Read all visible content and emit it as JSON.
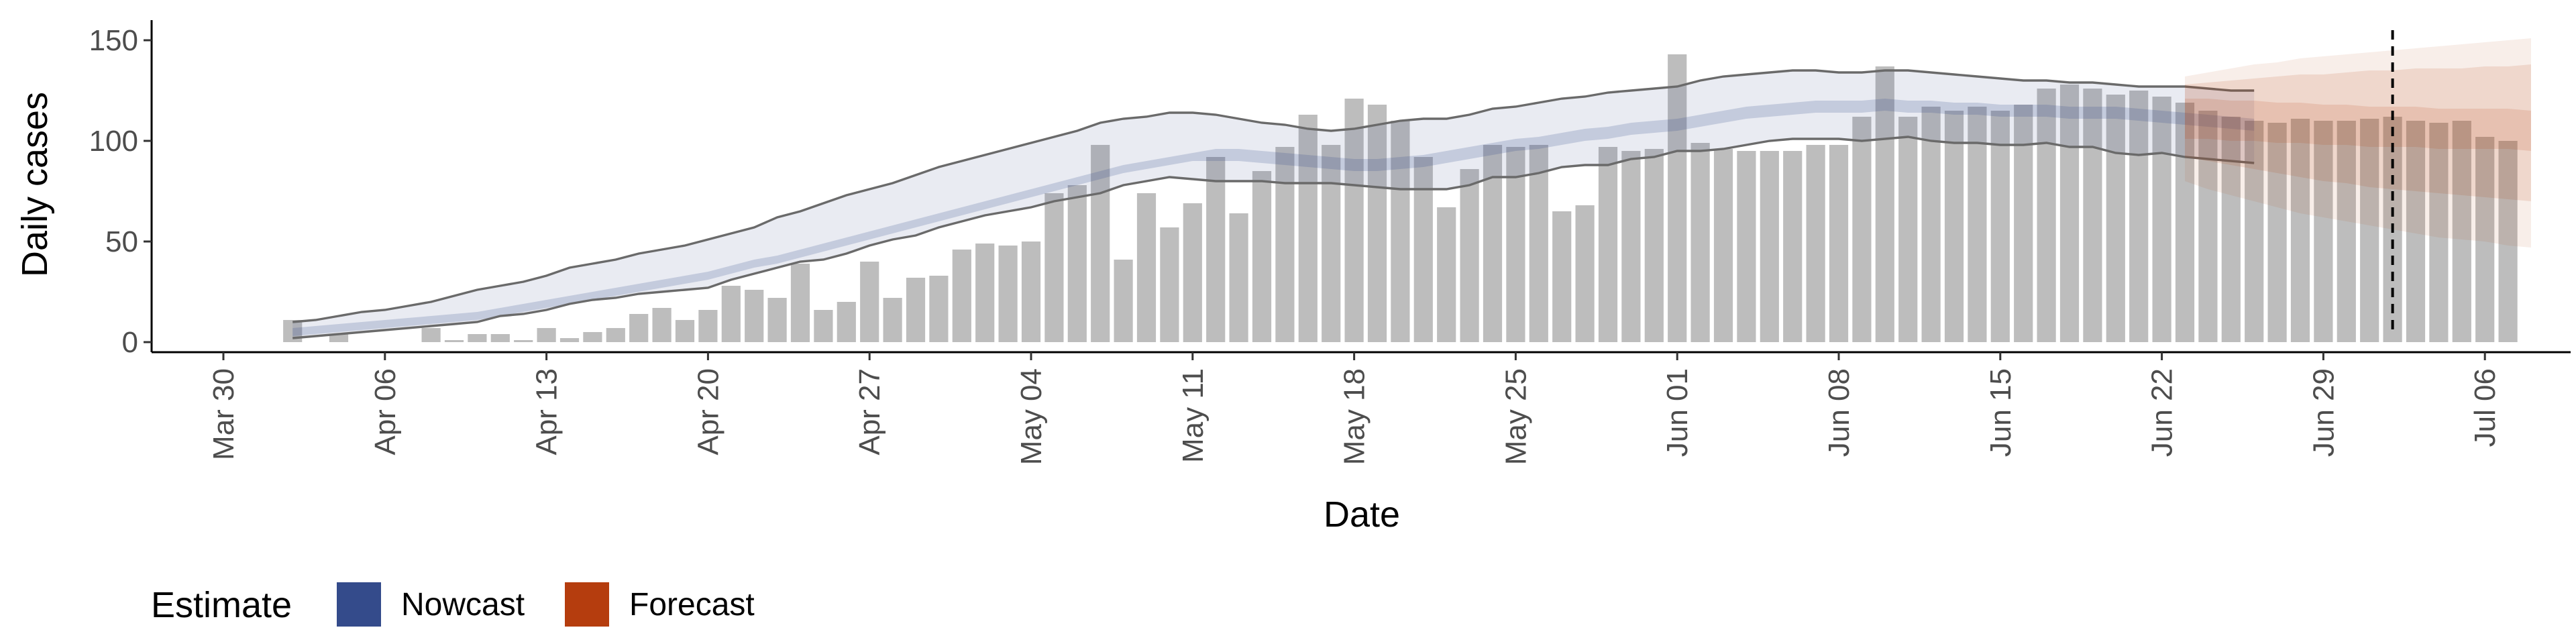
{
  "chart_data": {
    "type": "bar",
    "xlabel": "Date",
    "ylabel": "Daily cases",
    "ylim": [
      -5,
      160
    ],
    "yticks": [
      0,
      50,
      100,
      150
    ],
    "xlim": [
      "2020-03-30",
      "2020-07-09"
    ],
    "xticks": [
      "2020-03-30",
      "2020-04-06",
      "2020-04-13",
      "2020-04-20",
      "2020-04-27",
      "2020-05-04",
      "2020-05-11",
      "2020-05-18",
      "2020-05-25",
      "2020-06-01",
      "2020-06-08",
      "2020-06-15",
      "2020-06-22",
      "2020-06-29",
      "2020-07-06"
    ],
    "xtick_labels": [
      "Mar 30",
      "Apr 06",
      "Apr 13",
      "Apr 20",
      "Apr 27",
      "May 04",
      "May 11",
      "May 18",
      "May 25",
      "Jun 01",
      "Jun 08",
      "Jun 15",
      "Jun 22",
      "Jun 29",
      "Jul 06"
    ],
    "grid": false,
    "legend": {
      "title": "Estimate",
      "position": "bottom-left",
      "entries": [
        {
          "label": "Nowcast",
          "color": "#344b8b"
        },
        {
          "label": "Forecast",
          "color": "#b53d0e"
        }
      ]
    },
    "vline_date": "2020-07-02",
    "bar_color": "#bdbdbd",
    "observed": {
      "start_date": "2020-04-02",
      "values": [
        11,
        0,
        4,
        0,
        0,
        0,
        7,
        1,
        4,
        4,
        1,
        7,
        2,
        5,
        7,
        14,
        17,
        11,
        16,
        28,
        26,
        22,
        39,
        16,
        20,
        40,
        22,
        32,
        33,
        46,
        49,
        48,
        50,
        74,
        78,
        98,
        41,
        74,
        57,
        69,
        92,
        64,
        85,
        97,
        113,
        98,
        121,
        118,
        110,
        92,
        67,
        86,
        98,
        97,
        98,
        65,
        68,
        97,
        95,
        96,
        143,
        99,
        96,
        95,
        95,
        95,
        98,
        98,
        112,
        137,
        112,
        117,
        115,
        117,
        115,
        118,
        126,
        128,
        126,
        123,
        125,
        122,
        119,
        115,
        112,
        110,
        109,
        111,
        110,
        110,
        111,
        112,
        110,
        109,
        110,
        102,
        100
      ]
    },
    "nowcast": {
      "start_date": "2020-04-02",
      "median": [
        5,
        6,
        7,
        8,
        9,
        10,
        11,
        12,
        13,
        15,
        17,
        19,
        21,
        23,
        25,
        27,
        29,
        31,
        33,
        36,
        39,
        41,
        44,
        47,
        50,
        53,
        56,
        59,
        62,
        65,
        68,
        71,
        74,
        77,
        80,
        83,
        86,
        88,
        90,
        92,
        93,
        93,
        92,
        91,
        90,
        89,
        88,
        88,
        89,
        90,
        92,
        94,
        96,
        98,
        99,
        101,
        103,
        104,
        106,
        107,
        108,
        110,
        112,
        114,
        115,
        116,
        117,
        117,
        117,
        118,
        117,
        117,
        116,
        116,
        115,
        115,
        115,
        114,
        114,
        114,
        113,
        112,
        111,
        110,
        109,
        108
      ],
      "inner_lower": [
        3,
        4,
        5,
        6,
        7,
        8,
        9,
        10,
        11,
        13,
        15,
        17,
        19,
        21,
        23,
        25,
        27,
        29,
        31,
        34,
        37,
        39,
        42,
        45,
        48,
        51,
        54,
        57,
        60,
        63,
        66,
        69,
        72,
        75,
        78,
        81,
        84,
        86,
        88,
        90,
        90,
        90,
        89,
        88,
        87,
        86,
        85,
        85,
        86,
        87,
        89,
        91,
        93,
        95,
        96,
        98,
        100,
        101,
        103,
        104,
        105,
        107,
        109,
        111,
        112,
        113,
        114,
        114,
        114,
        115,
        114,
        114,
        113,
        113,
        112,
        112,
        112,
        111,
        111,
        111,
        110,
        109,
        108,
        107,
        106,
        105
      ],
      "inner_upper": [
        7,
        8,
        9,
        10,
        11,
        12,
        13,
        14,
        15,
        17,
        19,
        21,
        23,
        25,
        27,
        29,
        31,
        33,
        35,
        38,
        41,
        43,
        46,
        49,
        52,
        55,
        58,
        61,
        64,
        67,
        70,
        73,
        76,
        79,
        82,
        85,
        88,
        90,
        92,
        94,
        96,
        96,
        95,
        94,
        93,
        92,
        91,
        91,
        92,
        93,
        95,
        97,
        99,
        101,
        102,
        104,
        106,
        107,
        109,
        110,
        111,
        113,
        115,
        117,
        118,
        119,
        120,
        120,
        120,
        121,
        120,
        120,
        119,
        119,
        118,
        118,
        118,
        117,
        117,
        117,
        116,
        115,
        114,
        113,
        112,
        111
      ],
      "outer_lower": [
        2,
        3,
        4,
        5,
        6,
        7,
        8,
        9,
        10,
        13,
        14,
        16,
        19,
        21,
        22,
        24,
        25,
        26,
        27,
        31,
        34,
        37,
        40,
        41,
        44,
        48,
        51,
        53,
        57,
        60,
        63,
        65,
        67,
        70,
        72,
        74,
        78,
        80,
        82,
        81,
        80,
        80,
        80,
        79,
        79,
        79,
        78,
        77,
        76,
        76,
        76,
        78,
        82,
        82,
        84,
        87,
        88,
        88,
        91,
        92,
        95,
        95,
        96,
        98,
        100,
        101,
        101,
        101,
        100,
        101,
        102,
        100,
        99,
        99,
        98,
        98,
        99,
        97,
        97,
        94,
        93,
        94,
        92,
        91,
        90,
        89
      ],
      "outer_upper": [
        10,
        11,
        13,
        15,
        16,
        18,
        20,
        23,
        26,
        28,
        30,
        33,
        37,
        39,
        41,
        44,
        46,
        48,
        51,
        54,
        57,
        62,
        65,
        69,
        73,
        76,
        79,
        83,
        87,
        90,
        93,
        96,
        99,
        102,
        105,
        109,
        111,
        112,
        114,
        114,
        113,
        111,
        109,
        108,
        106,
        105,
        106,
        108,
        110,
        111,
        111,
        113,
        116,
        117,
        119,
        121,
        122,
        124,
        125,
        126,
        127,
        130,
        132,
        133,
        134,
        135,
        135,
        134,
        134,
        135,
        135,
        134,
        133,
        132,
        131,
        130,
        130,
        129,
        129,
        128,
        127,
        127,
        127,
        126,
        125,
        125
      ]
    },
    "forecast": {
      "start_date": "2020-06-23",
      "median": [
        111,
        111,
        110,
        110,
        109,
        109,
        108,
        108,
        107,
        107,
        107,
        106,
        106,
        106,
        106,
        105
      ],
      "inner_lower": [
        92,
        90,
        88,
        86,
        84,
        82,
        80,
        79,
        77,
        76,
        75,
        74,
        73,
        72,
        71,
        70
      ],
      "inner_upper": [
        128,
        129,
        130,
        131,
        132,
        133,
        133,
        134,
        135,
        135,
        136,
        136,
        136,
        137,
        137,
        138
      ],
      "outer_lower": [
        80,
        76,
        73,
        70,
        67,
        64,
        62,
        60,
        58,
        56,
        54,
        52,
        51,
        50,
        48,
        47
      ],
      "outer_upper": [
        132,
        134,
        136,
        138,
        139,
        141,
        142,
        143,
        144,
        145,
        146,
        147,
        148,
        149,
        150,
        151
      ]
    }
  }
}
